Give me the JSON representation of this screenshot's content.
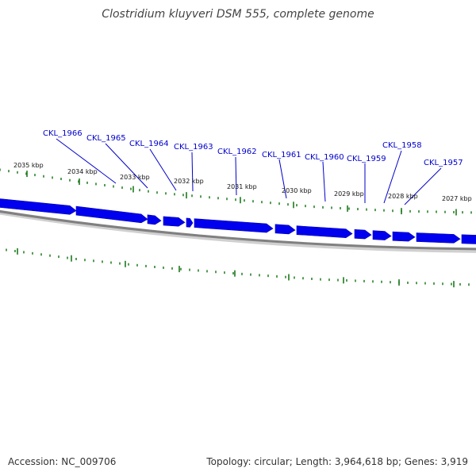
{
  "title": "Clostridium kluyveri DSM 555, complete genome",
  "colors": {
    "gene": "#0000ee",
    "gene_label": "#0000cc",
    "leader": "#0000cc",
    "tick": "#1a7a1a",
    "backbone": "#808080"
  },
  "kbp_ticks": [
    {
      "kbp": 2035,
      "label": "2035 kbp"
    },
    {
      "kbp": 2034,
      "label": "2034 kbp"
    },
    {
      "kbp": 2033,
      "label": "2033 kbp"
    },
    {
      "kbp": 2032,
      "label": "2032 kbp"
    },
    {
      "kbp": 2031,
      "label": "2031 kbp"
    },
    {
      "kbp": 2030,
      "label": "2030 kbp"
    },
    {
      "kbp": 2029,
      "label": "2029 kbp"
    },
    {
      "kbp": 2028,
      "label": "2028 kbp"
    },
    {
      "kbp": 2027,
      "label": "2027 kbp"
    }
  ],
  "genes": [
    {
      "label": "CKL_1966"
    },
    {
      "label": "CKL_1965"
    },
    {
      "label": "CKL_1964"
    },
    {
      "label": "CKL_1963"
    },
    {
      "label": "CKL_1962"
    },
    {
      "label": "CKL_1961"
    },
    {
      "label": "CKL_1960"
    },
    {
      "label": "CKL_1959"
    },
    {
      "label": "CKL_1958"
    },
    {
      "label": "CKL_1957"
    }
  ],
  "footer": {
    "accession": "Accession: NC_009706",
    "summary": "Topology: circular; Length: 3,964,618 bp; Genes: 3,919"
  }
}
